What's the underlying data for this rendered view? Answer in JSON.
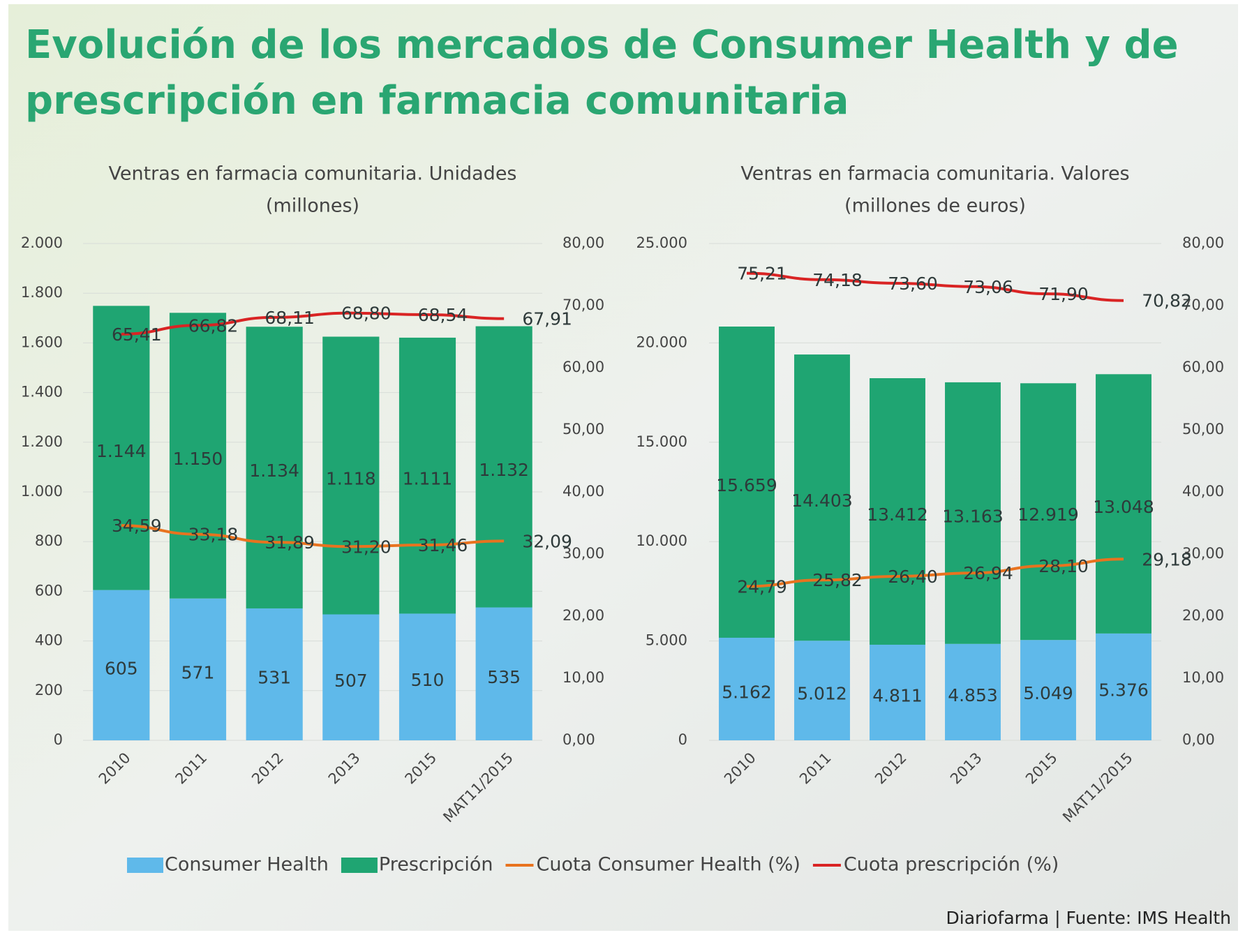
{
  "title": [
    "Evolución de los mercados de Consumer Health y de",
    "prescripción en farmacia comunitaria"
  ],
  "source": "Diariofarma | Fuente: IMS Health",
  "chart_data": [
    {
      "type": "bar",
      "stacked": true,
      "grid": true,
      "title": [
        "Ventras en farmacia comunitaria. Unidades",
        "(millones)"
      ],
      "categories": [
        "2010",
        "2011",
        "2012",
        "2013",
        "2015",
        "MAT11/2015"
      ],
      "ylim": [
        0,
        2000
      ],
      "yticks": [
        0,
        {
          "value": 200,
          "label": "200"
        },
        {
          "value": 400,
          "label": "400"
        },
        {
          "value": 600,
          "label": "600"
        },
        {
          "value": 800,
          "label": "800"
        },
        {
          "value": 1000,
          "label": "1.000"
        },
        {
          "value": 1200,
          "label": "1.200"
        },
        {
          "value": 1400,
          "label": "1.400"
        },
        {
          "value": 1600,
          "label": "1.600"
        },
        {
          "value": 1800,
          "label": "1.800"
        },
        {
          "value": 2000,
          "label": "2.000"
        }
      ],
      "y2lim": [
        0,
        80
      ],
      "y2ticks": [
        {
          "value": 0,
          "label": "0,00"
        },
        {
          "value": 10,
          "label": "10,00"
        },
        {
          "value": 20,
          "label": "20,00"
        },
        {
          "value": 30,
          "label": "30,00"
        },
        {
          "value": 40,
          "label": "40,00"
        },
        {
          "value": 50,
          "label": "50,00"
        },
        {
          "value": 60,
          "label": "60,00"
        },
        {
          "value": 70,
          "label": "70,00"
        },
        {
          "value": 80,
          "label": "80,00"
        }
      ],
      "series": [
        {
          "name": "Consumer Health",
          "color": "#5fb9ea",
          "values": [
            605,
            571,
            531,
            507,
            510,
            535
          ]
        },
        {
          "name": "Prescripción",
          "color": "#1fa572",
          "values": [
            1144,
            1150,
            1134,
            1118,
            1111,
            1132
          ],
          "value_labels": [
            "1.144",
            "1.150",
            "1.134",
            "1.118",
            "1.111",
            "1.132"
          ]
        },
        {
          "name": "Cuota Consumer Health (%)",
          "color": "#e8731f",
          "type": "line",
          "axis": "y2",
          "values": [
            34.59,
            33.18,
            31.89,
            31.2,
            31.46,
            32.09
          ],
          "value_labels": [
            "34,59",
            "33,18",
            "31,89",
            "31,20",
            "31,46",
            "32,09"
          ]
        },
        {
          "name": "Cuota prescripción (%)",
          "color": "#d92424",
          "type": "line",
          "axis": "y2",
          "values": [
            65.41,
            66.82,
            68.11,
            68.8,
            68.54,
            67.91
          ],
          "value_labels": [
            "65,41",
            "66,82",
            "68,11",
            "68,80",
            "68,54",
            "67,91"
          ]
        }
      ]
    },
    {
      "type": "bar",
      "stacked": true,
      "grid": true,
      "title": [
        "Ventras en farmacia comunitaria. Valores",
        "(millones de euros)"
      ],
      "categories": [
        "2010",
        "2011",
        "2012",
        "2013",
        "2015",
        "MAT11/2015"
      ],
      "ylim": [
        0,
        25000
      ],
      "yticks": [
        0,
        {
          "value": 5000,
          "label": "5.000"
        },
        {
          "value": 10000,
          "label": "10.000"
        },
        {
          "value": 15000,
          "label": "15.000"
        },
        {
          "value": 20000,
          "label": "20.000"
        },
        {
          "value": 25000,
          "label": "25.000"
        }
      ],
      "y2lim": [
        0,
        80
      ],
      "y2ticks": [
        {
          "value": 0,
          "label": "0,00"
        },
        {
          "value": 10,
          "label": "10,00"
        },
        {
          "value": 20,
          "label": "20,00"
        },
        {
          "value": 30,
          "label": "30,00"
        },
        {
          "value": 40,
          "label": "40,00"
        },
        {
          "value": 50,
          "label": "50,00"
        },
        {
          "value": 60,
          "label": "60,00"
        },
        {
          "value": 70,
          "label": "70,00"
        },
        {
          "value": 80,
          "label": "80,00"
        }
      ],
      "series": [
        {
          "color": "#5fb9ea",
          "values": [
            5162,
            5012,
            4811,
            4853,
            5049,
            5376
          ],
          "value_labels": [
            "5.162",
            "5.012",
            "4.811",
            "4.853",
            "5.049",
            "5.376"
          ]
        },
        {
          "color": "#1fa572",
          "values": [
            15659,
            14403,
            13412,
            13163,
            12919,
            13048
          ],
          "value_labels": [
            "15.659",
            "14.403",
            "13.412",
            "13.163",
            "12.919",
            "13.048"
          ]
        },
        {
          "color": "#e8731f",
          "type": "line",
          "axis": "y2",
          "values": [
            24.79,
            25.82,
            26.4,
            26.94,
            28.1,
            29.18
          ],
          "value_labels": [
            "24,79",
            "25,82",
            "26,40",
            "26,94",
            "28,10",
            "29,18"
          ]
        },
        {
          "color": "#d92424",
          "type": "line",
          "axis": "y2",
          "values": [
            75.21,
            74.18,
            73.6,
            73.06,
            71.9,
            70.82
          ],
          "value_labels": [
            "75,21",
            "74,18",
            "73,60",
            "73,06",
            "71,90",
            "70,82"
          ]
        }
      ]
    }
  ]
}
